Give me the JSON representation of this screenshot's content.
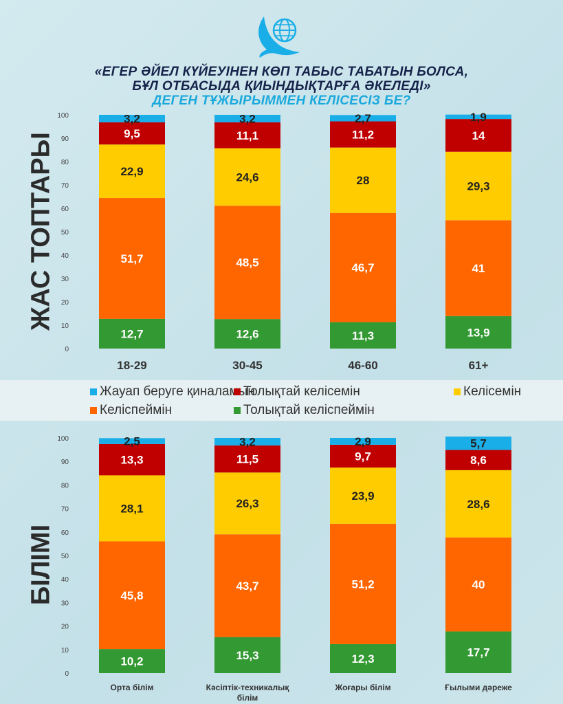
{
  "title": {
    "line1": "«ЕГЕР ӘЙЕЛ КҮЙЕУІНЕН КӨП ТАБЫС ТАБАТЫН БОЛСА,",
    "line2": "БҰЛ ОТБАСЫДА ҚИЫНДЫҚТАРҒА ӘКЕЛЕДІ»",
    "line3": "ДЕГЕН ТҰЖЫРЫММЕН КЕЛІСЕСІЗ БЕ?"
  },
  "colors": {
    "no_answer": "#1aaee8",
    "fully_agree": "#c00000",
    "agree": "#ffcc00",
    "disagree": "#ff6600",
    "fully_disagree": "#339933"
  },
  "legend": [
    {
      "key": "no_answer",
      "label": "Жауап беруге қиналамын"
    },
    {
      "key": "fully_agree",
      "label": "Толықтай келісемін"
    },
    {
      "key": "agree",
      "label": "Келісемін"
    },
    {
      "key": "disagree",
      "label": "Келіспеймін"
    },
    {
      "key": "fully_disagree",
      "label": "Толықтай келіспеймін"
    }
  ],
  "chart_data": [
    {
      "type": "bar",
      "stacked": true,
      "ylabel": "ЖАС ТОПТАРЫ",
      "ylim": [
        0,
        100
      ],
      "yticks": [
        0,
        10,
        20,
        30,
        40,
        50,
        60,
        70,
        80,
        90,
        100
      ],
      "categories": [
        "18-29",
        "30-45",
        "46-60",
        "61+"
      ],
      "series": [
        {
          "key": "fully_disagree",
          "name": "Толықтай келіспеймін",
          "values": [
            12.7,
            12.6,
            11.3,
            13.9
          ],
          "labels": [
            "12,7",
            "12,6",
            "11,3",
            "13,9"
          ]
        },
        {
          "key": "disagree",
          "name": "Келіспеймін",
          "values": [
            51.7,
            48.5,
            46.7,
            41
          ],
          "labels": [
            "51,7",
            "48,5",
            "46,7",
            "41"
          ]
        },
        {
          "key": "agree",
          "name": "Келісемін",
          "values": [
            22.9,
            24.6,
            28,
            29.3
          ],
          "labels": [
            "22,9",
            "24,6",
            "28",
            "29,3"
          ]
        },
        {
          "key": "fully_agree",
          "name": "Толықтай келісемін",
          "values": [
            9.5,
            11.1,
            11.2,
            14
          ],
          "labels": [
            "9,5",
            "11,1",
            "11,2",
            "14"
          ]
        },
        {
          "key": "no_answer",
          "name": "Жауап беруге қиналамын",
          "values": [
            3.2,
            3.2,
            2.7,
            1.9
          ],
          "labels": [
            "3,2",
            "3,2",
            "2,7",
            "1,9"
          ]
        }
      ]
    },
    {
      "type": "bar",
      "stacked": true,
      "ylabel": "БІЛІМІ",
      "ylim": [
        0,
        100
      ],
      "yticks": [
        0,
        10,
        20,
        30,
        40,
        50,
        60,
        70,
        80,
        90,
        100
      ],
      "categories": [
        "Орта білім",
        "Кәсіптік-техникалық білім",
        "Жоғары білім",
        "Ғылыми дәреже"
      ],
      "category_lines": [
        [
          "Орта білім"
        ],
        [
          "Кәсіптік-техникалық",
          "білім"
        ],
        [
          "Жоғары білім"
        ],
        [
          "Ғылыми дәреже"
        ]
      ],
      "series": [
        {
          "key": "fully_disagree",
          "name": "Толықтай келіспеймін",
          "values": [
            10.2,
            15.3,
            12.3,
            17.7
          ],
          "labels": [
            "10,2",
            "15,3",
            "12,3",
            "17,7"
          ]
        },
        {
          "key": "disagree",
          "name": "Келіспеймін",
          "values": [
            45.8,
            43.7,
            51.2,
            40
          ],
          "labels": [
            "45,8",
            "43,7",
            "51,2",
            "40"
          ]
        },
        {
          "key": "agree",
          "name": "Келісемін",
          "values": [
            28.1,
            26.3,
            23.9,
            28.6
          ],
          "labels": [
            "28,1",
            "26,3",
            "23,9",
            "28,6"
          ]
        },
        {
          "key": "fully_agree",
          "name": "Толықтай келісемін",
          "values": [
            13.3,
            11.5,
            9.7,
            8.6
          ],
          "labels": [
            "13,3",
            "11,5",
            "9,7",
            "8,6"
          ]
        },
        {
          "key": "no_answer",
          "name": "Жауап беруге қиналамын",
          "values": [
            2.5,
            3.2,
            2.9,
            5.7
          ],
          "labels": [
            "2,5",
            "3,2",
            "2,9",
            "5,7"
          ]
        }
      ]
    }
  ]
}
